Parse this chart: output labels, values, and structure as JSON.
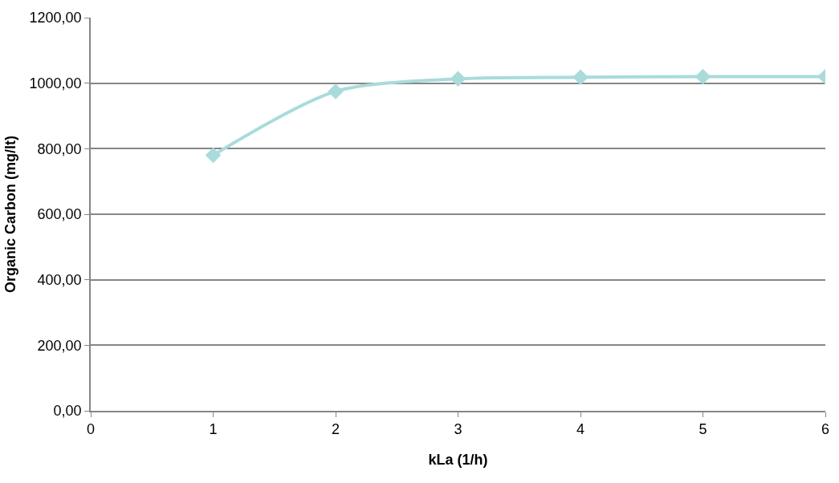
{
  "chart_data": {
    "type": "line",
    "xlabel": "kLa (1/h)",
    "ylabel": "Organic Carbon (mg/lt)",
    "x": [
      1,
      2,
      3,
      4,
      5,
      6
    ],
    "series": [
      {
        "color": "#a9dbdb",
        "values": [
          780,
          975,
          1013,
          1018,
          1020,
          1020
        ]
      }
    ],
    "xlim": [
      0,
      6
    ],
    "xticks": [
      0,
      1,
      2,
      3,
      4,
      5,
      6
    ],
    "ylim": [
      0,
      1200
    ],
    "yticks": [
      {
        "value": 0,
        "label": "0,00"
      },
      {
        "value": 200,
        "label": "200,00"
      },
      {
        "value": 400,
        "label": "400,00"
      },
      {
        "value": 600,
        "label": "600,00"
      },
      {
        "value": 800,
        "label": "800,00"
      },
      {
        "value": 1000,
        "label": "1000,00"
      },
      {
        "value": 1200,
        "label": "1200,00"
      }
    ],
    "grid": "y",
    "marker": "diamond",
    "line_style": "solid",
    "legend": false
  }
}
